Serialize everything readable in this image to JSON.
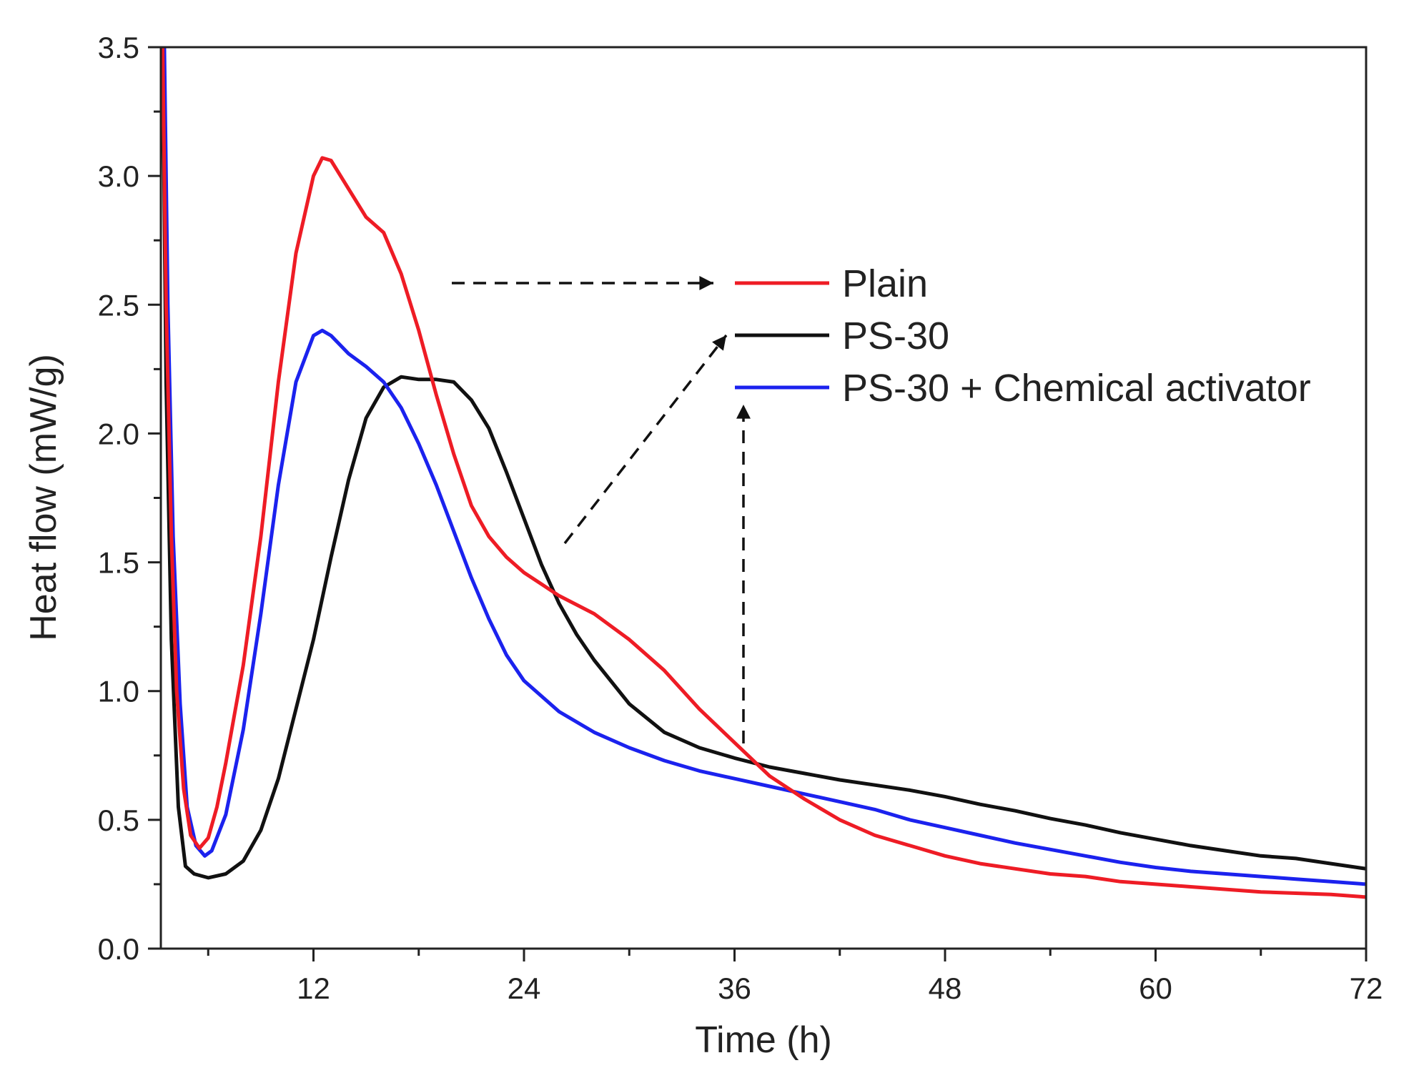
{
  "chart_data": {
    "type": "line",
    "title": "",
    "xlabel": "Time (h)",
    "ylabel": "Heat flow (mW/g)",
    "xlim": [
      3.3,
      72
    ],
    "ylim": [
      0,
      3.5
    ],
    "x_ticks": [
      12,
      24,
      36,
      48,
      60,
      72
    ],
    "x_tick_labels": [
      "12",
      "24",
      "36",
      "48",
      "60",
      "72"
    ],
    "y_ticks": [
      0,
      0.5,
      1.0,
      1.5,
      2.0,
      2.5,
      3.0,
      3.5
    ],
    "y_tick_labels": [
      "0.0",
      "0.5",
      "1.0",
      "1.5",
      "2.0",
      "2.5",
      "3.0",
      "3.5"
    ],
    "legend_position": "upper-right (inside plot)",
    "series": [
      {
        "name": "Plain",
        "color": "#ee1c25",
        "points": [
          [
            3.4,
            3.5
          ],
          [
            3.6,
            2.5
          ],
          [
            3.9,
            1.6
          ],
          [
            4.2,
            1.0
          ],
          [
            4.6,
            0.62
          ],
          [
            5.0,
            0.44
          ],
          [
            5.5,
            0.39
          ],
          [
            6.0,
            0.43
          ],
          [
            6.5,
            0.55
          ],
          [
            7.0,
            0.72
          ],
          [
            8,
            1.1
          ],
          [
            9,
            1.6
          ],
          [
            10,
            2.2
          ],
          [
            11,
            2.7
          ],
          [
            12,
            3.0
          ],
          [
            12.5,
            3.07
          ],
          [
            13,
            3.06
          ],
          [
            14,
            2.95
          ],
          [
            15,
            2.84
          ],
          [
            16,
            2.78
          ],
          [
            17,
            2.62
          ],
          [
            18,
            2.4
          ],
          [
            19,
            2.15
          ],
          [
            20,
            1.92
          ],
          [
            21,
            1.72
          ],
          [
            22,
            1.6
          ],
          [
            23,
            1.52
          ],
          [
            24,
            1.46
          ],
          [
            26,
            1.37
          ],
          [
            28,
            1.3
          ],
          [
            30,
            1.2
          ],
          [
            32,
            1.08
          ],
          [
            34,
            0.93
          ],
          [
            36,
            0.8
          ],
          [
            38,
            0.67
          ],
          [
            40,
            0.58
          ],
          [
            42,
            0.5
          ],
          [
            44,
            0.44
          ],
          [
            46,
            0.4
          ],
          [
            48,
            0.36
          ],
          [
            50,
            0.33
          ],
          [
            52,
            0.31
          ],
          [
            54,
            0.29
          ],
          [
            56,
            0.28
          ],
          [
            58,
            0.26
          ],
          [
            60,
            0.25
          ],
          [
            62,
            0.24
          ],
          [
            64,
            0.23
          ],
          [
            66,
            0.22
          ],
          [
            68,
            0.215
          ],
          [
            70,
            0.21
          ],
          [
            72,
            0.2
          ]
        ]
      },
      {
        "name": "PS-30",
        "color": "#111111",
        "points": [
          [
            3.4,
            3.5
          ],
          [
            3.6,
            2.2
          ],
          [
            3.9,
            1.2
          ],
          [
            4.3,
            0.55
          ],
          [
            4.7,
            0.32
          ],
          [
            5.2,
            0.29
          ],
          [
            6,
            0.275
          ],
          [
            7,
            0.29
          ],
          [
            8,
            0.34
          ],
          [
            9,
            0.46
          ],
          [
            10,
            0.66
          ],
          [
            11,
            0.93
          ],
          [
            12,
            1.2
          ],
          [
            13,
            1.52
          ],
          [
            14,
            1.82
          ],
          [
            15,
            2.06
          ],
          [
            16,
            2.18
          ],
          [
            17,
            2.22
          ],
          [
            18,
            2.21
          ],
          [
            19,
            2.21
          ],
          [
            20,
            2.2
          ],
          [
            21,
            2.13
          ],
          [
            22,
            2.02
          ],
          [
            23,
            1.85
          ],
          [
            24,
            1.67
          ],
          [
            25,
            1.49
          ],
          [
            26,
            1.34
          ],
          [
            27,
            1.22
          ],
          [
            28,
            1.12
          ],
          [
            30,
            0.95
          ],
          [
            32,
            0.84
          ],
          [
            34,
            0.78
          ],
          [
            36,
            0.74
          ],
          [
            38,
            0.705
          ],
          [
            40,
            0.68
          ],
          [
            42,
            0.655
          ],
          [
            44,
            0.635
          ],
          [
            46,
            0.615
          ],
          [
            48,
            0.59
          ],
          [
            50,
            0.56
          ],
          [
            52,
            0.535
          ],
          [
            54,
            0.505
          ],
          [
            56,
            0.48
          ],
          [
            58,
            0.45
          ],
          [
            60,
            0.425
          ],
          [
            62,
            0.4
          ],
          [
            64,
            0.38
          ],
          [
            66,
            0.36
          ],
          [
            68,
            0.35
          ],
          [
            70,
            0.33
          ],
          [
            72,
            0.31
          ]
        ]
      },
      {
        "name": "PS-30 + Chemical activator",
        "color": "#1b22ee",
        "points": [
          [
            3.5,
            3.5
          ],
          [
            3.7,
            2.5
          ],
          [
            4.0,
            1.6
          ],
          [
            4.4,
            0.95
          ],
          [
            4.8,
            0.55
          ],
          [
            5.3,
            0.4
          ],
          [
            5.8,
            0.36
          ],
          [
            6.2,
            0.38
          ],
          [
            7,
            0.52
          ],
          [
            8,
            0.85
          ],
          [
            9,
            1.3
          ],
          [
            10,
            1.8
          ],
          [
            11,
            2.2
          ],
          [
            12,
            2.38
          ],
          [
            12.5,
            2.4
          ],
          [
            13,
            2.38
          ],
          [
            14,
            2.31
          ],
          [
            15,
            2.26
          ],
          [
            16,
            2.2
          ],
          [
            17,
            2.1
          ],
          [
            18,
            1.96
          ],
          [
            19,
            1.8
          ],
          [
            20,
            1.62
          ],
          [
            21,
            1.44
          ],
          [
            22,
            1.28
          ],
          [
            23,
            1.14
          ],
          [
            24,
            1.04
          ],
          [
            26,
            0.92
          ],
          [
            28,
            0.84
          ],
          [
            30,
            0.78
          ],
          [
            32,
            0.73
          ],
          [
            34,
            0.69
          ],
          [
            36,
            0.66
          ],
          [
            38,
            0.63
          ],
          [
            40,
            0.6
          ],
          [
            42,
            0.57
          ],
          [
            44,
            0.54
          ],
          [
            46,
            0.5
          ],
          [
            48,
            0.47
          ],
          [
            50,
            0.44
          ],
          [
            52,
            0.41
          ],
          [
            54,
            0.385
          ],
          [
            56,
            0.36
          ],
          [
            58,
            0.335
          ],
          [
            60,
            0.315
          ],
          [
            62,
            0.3
          ],
          [
            64,
            0.29
          ],
          [
            66,
            0.28
          ],
          [
            68,
            0.27
          ],
          [
            70,
            0.26
          ],
          [
            72,
            0.25
          ]
        ]
      }
    ]
  }
}
